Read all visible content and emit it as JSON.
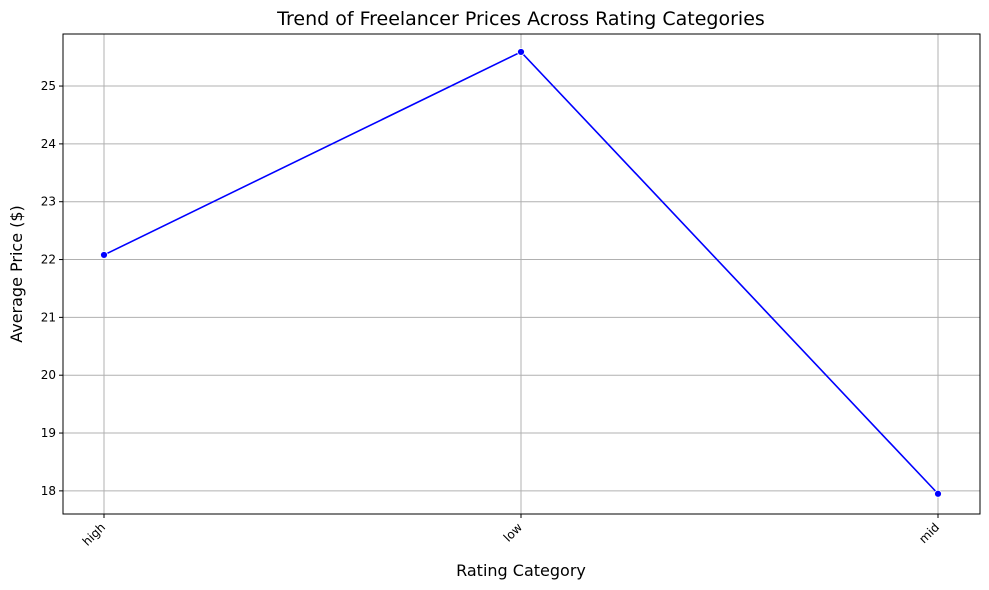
{
  "chart_data": {
    "type": "line",
    "title": "Trend of Freelancer Prices Across Rating Categories",
    "xlabel": "Rating Category",
    "ylabel": "Average Price ($)",
    "categories": [
      "high",
      "low",
      "mid"
    ],
    "series": [
      {
        "values": [
          22.08,
          25.59,
          17.95
        ],
        "color": "#0000ff",
        "marker": "circle"
      }
    ],
    "ylim": [
      17.6,
      25.9
    ],
    "yticks": [
      18,
      19,
      20,
      21,
      22,
      23,
      24,
      25
    ],
    "grid": true,
    "xtick_rotation": "45"
  }
}
